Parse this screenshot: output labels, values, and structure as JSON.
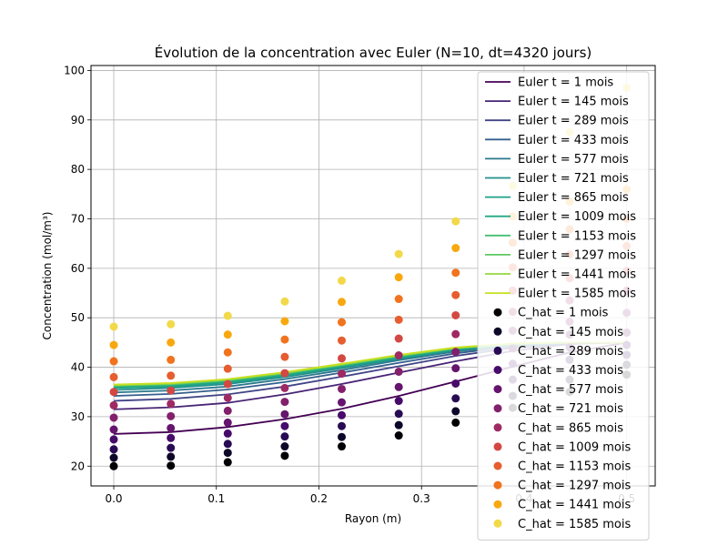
{
  "chart_data": {
    "type": "line",
    "title": "Évolution de la concentration avec Euler (N=10, dt=4320 jours)",
    "xlabel": "Rayon (m)",
    "ylabel": "Concentration (mol/m³)",
    "xlim": [
      -0.0222,
      0.5278
    ],
    "ylim": [
      16,
      101
    ],
    "xticks": [
      0.0,
      0.1,
      0.2,
      0.3,
      0.4,
      0.5
    ],
    "xtick_labels": [
      "0.0",
      "0.1",
      "0.2",
      "0.3",
      "0.4",
      "0.5"
    ],
    "yticks": [
      20,
      30,
      40,
      50,
      60,
      70,
      80,
      90,
      100
    ],
    "grid": true,
    "legend_position": "upper-right",
    "x": [
      0.0,
      0.0556,
      0.1111,
      0.1667,
      0.2222,
      0.2778,
      0.3333,
      0.3889,
      0.4444,
      0.5
    ],
    "euler_series": [
      {
        "name": "Euler t = 1 mois",
        "color": "#440154",
        "values": [
          26.5,
          26.9,
          27.9,
          29.5,
          31.6,
          34.2,
          37.1,
          40.1,
          43.0,
          45.0
        ]
      },
      {
        "name": "Euler t = 145 mois",
        "color": "#482475",
        "values": [
          31.5,
          31.9,
          32.8,
          34.5,
          36.6,
          38.9,
          41.2,
          43.3,
          44.7,
          45.0
        ]
      },
      {
        "name": "Euler t = 289 mois",
        "color": "#414487",
        "values": [
          33.2,
          33.6,
          34.5,
          36.1,
          38.1,
          40.2,
          42.3,
          43.9,
          44.8,
          45.0
        ]
      },
      {
        "name": "Euler t = 433 mois",
        "color": "#355f8d",
        "values": [
          34.2,
          34.6,
          35.5,
          37.0,
          38.9,
          40.9,
          42.8,
          44.2,
          44.9,
          45.0
        ]
      },
      {
        "name": "Euler t = 577 mois",
        "color": "#2a788e",
        "values": [
          34.9,
          35.3,
          36.1,
          37.6,
          39.4,
          41.4,
          43.2,
          44.4,
          44.9,
          45.0
        ]
      },
      {
        "name": "Euler t = 721 mois",
        "color": "#21918c",
        "values": [
          35.4,
          35.8,
          36.6,
          38.0,
          39.8,
          41.7,
          43.4,
          44.5,
          45.0,
          45.0
        ]
      },
      {
        "name": "Euler t = 865 mois",
        "color": "#1fa088",
        "values": [
          35.8,
          36.1,
          36.9,
          38.3,
          40.1,
          41.9,
          43.6,
          44.6,
          45.0,
          45.0
        ]
      },
      {
        "name": "Euler t = 1009 mois",
        "color": "#22a884",
        "values": [
          36.0,
          36.3,
          37.1,
          38.5,
          40.3,
          42.1,
          43.7,
          44.7,
          45.0,
          45.0
        ]
      },
      {
        "name": "Euler t = 1153 mois",
        "color": "#44bf70",
        "values": [
          36.2,
          36.5,
          37.3,
          38.7,
          40.4,
          42.2,
          43.8,
          44.7,
          45.0,
          45.0
        ]
      },
      {
        "name": "Euler t = 1297 mois",
        "color": "#5ec962",
        "values": [
          36.3,
          36.6,
          37.4,
          38.8,
          40.5,
          42.3,
          43.9,
          44.8,
          45.0,
          45.0
        ]
      },
      {
        "name": "Euler t = 1441 mois",
        "color": "#95d840",
        "values": [
          36.4,
          36.7,
          37.5,
          38.9,
          40.6,
          42.4,
          43.9,
          44.8,
          45.0,
          45.0
        ]
      },
      {
        "name": "Euler t = 1585 mois",
        "color": "#c8e020",
        "values": [
          36.5,
          36.8,
          37.6,
          39.0,
          40.7,
          42.5,
          44.0,
          44.8,
          45.0,
          45.0
        ]
      }
    ],
    "chat_series": [
      {
        "name": "C_hat = 1 mois",
        "color": "#000004",
        "values": [
          20.0,
          20.1,
          20.8,
          22.1,
          24.0,
          26.2,
          28.8,
          31.8,
          35.0,
          38.5
        ]
      },
      {
        "name": "C_hat = 145 mois",
        "color": "#0d0829",
        "values": [
          21.7,
          21.9,
          22.7,
          24.0,
          25.9,
          28.3,
          31.1,
          34.2,
          37.5,
          40.5
        ]
      },
      {
        "name": "C_hat = 289 mois",
        "color": "#280b53",
        "values": [
          23.4,
          23.7,
          24.5,
          26.0,
          28.1,
          30.6,
          33.7,
          37.5,
          41.5,
          42.5
        ]
      },
      {
        "name": "C_hat = 433 mois",
        "color": "#470b6a",
        "values": [
          25.4,
          25.7,
          26.6,
          28.1,
          30.3,
          33.2,
          36.7,
          40.7,
          44.0,
          44.5
        ]
      },
      {
        "name": "C_hat = 577 mois",
        "color": "#65156e",
        "values": [
          27.4,
          27.7,
          28.8,
          30.5,
          32.9,
          36.0,
          39.8,
          43.8,
          46.6,
          47.0
        ]
      },
      {
        "name": "C_hat = 721 mois",
        "color": "#82206c",
        "values": [
          29.8,
          30.1,
          31.2,
          33.0,
          35.6,
          39.1,
          43.1,
          47.4,
          49.2,
          51.0
        ]
      },
      {
        "name": "C_hat = 865 mois",
        "color": "#9f2a63",
        "values": [
          32.3,
          32.6,
          33.8,
          35.8,
          38.7,
          42.4,
          46.7,
          51.2,
          53.5,
          55.5
        ]
      },
      {
        "name": "C_hat = 1009 mois",
        "color": "#d44842",
        "values": [
          35.0,
          35.3,
          36.6,
          38.8,
          41.8,
          45.8,
          50.5,
          55.5,
          58.0,
          59.5
        ]
      },
      {
        "name": "C_hat = 1153 mois",
        "color": "#e65d2f",
        "values": [
          38.0,
          38.3,
          39.7,
          42.1,
          45.4,
          49.6,
          54.6,
          60.2,
          62.8,
          64.5
        ]
      },
      {
        "name": "C_hat = 1297 mois",
        "color": "#f1731d",
        "values": [
          41.2,
          41.5,
          43.0,
          45.6,
          49.1,
          53.8,
          59.1,
          65.2,
          67.9,
          70.0
        ]
      },
      {
        "name": "C_hat = 1441 mois",
        "color": "#f8a80f",
        "values": [
          44.5,
          45.0,
          46.6,
          49.3,
          53.2,
          58.2,
          64.1,
          70.5,
          73.5,
          76.0
        ]
      },
      {
        "name": "C_hat = 1585 mois",
        "color": "#f2d94a",
        "values": [
          48.2,
          48.7,
          50.4,
          53.3,
          57.5,
          62.9,
          69.5,
          76.7,
          87.5,
          96.5
        ]
      }
    ]
  }
}
